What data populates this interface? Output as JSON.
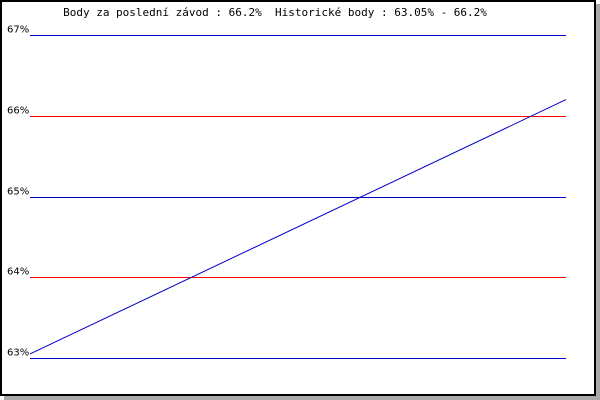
{
  "chart_data": {
    "type": "line",
    "title": "Body za poslední závod : 66.2%  Historické body : 63.05% - 66.2%",
    "ylim": [
      63,
      67
    ],
    "yticks": [
      {
        "value": 67,
        "label": "67%",
        "color": "#0000cc"
      },
      {
        "value": 66,
        "label": "66%",
        "color": "#ff0000"
      },
      {
        "value": 65,
        "label": "65%",
        "color": "#0000cc"
      },
      {
        "value": 64,
        "label": "64%",
        "color": "#ff0000"
      },
      {
        "value": 63,
        "label": "63%",
        "color": "#0000cc"
      }
    ],
    "grid": true,
    "series": [
      {
        "values": [
          63.05,
          66.2
        ],
        "color": "#0000cc"
      }
    ]
  }
}
